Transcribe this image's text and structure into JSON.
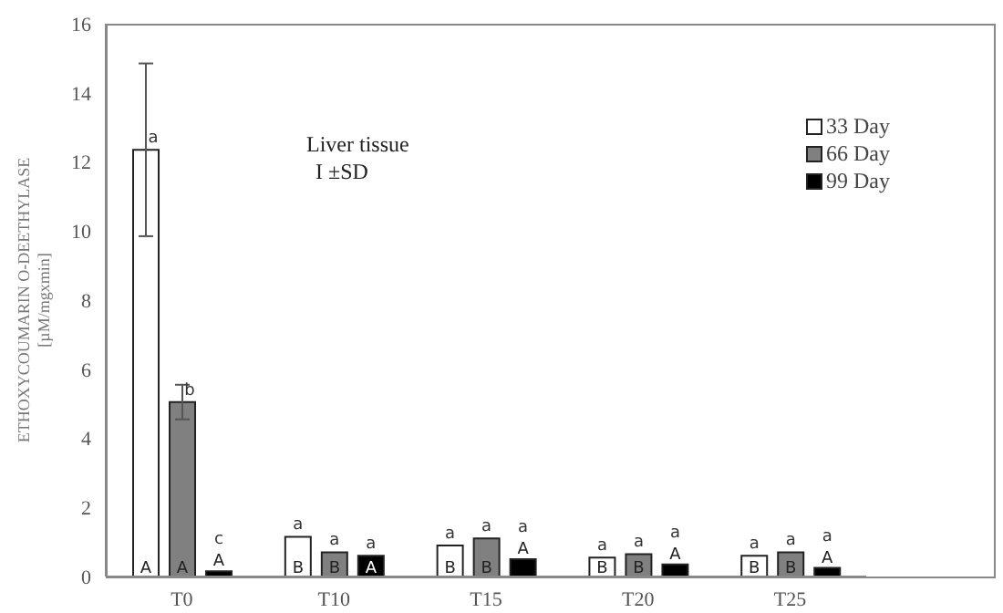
{
  "chart_data": {
    "type": "bar",
    "ylabel": "ETHOXYCOUMARIN  O-DEETHYLASE\n[µM/mgxmin]",
    "categories": [
      "T0",
      "T10",
      "T15",
      "T20",
      "T25"
    ],
    "series": [
      {
        "name": "33 Day",
        "color": "#ffffff",
        "values": [
          12.35,
          1.15,
          0.9,
          0.55,
          0.6
        ],
        "errors": [
          2.5,
          null,
          null,
          null,
          null
        ],
        "value_labels": [
          "a",
          "a",
          "a",
          "a",
          "a"
        ]
      },
      {
        "name": "66 Day",
        "color": "#808080",
        "values": [
          5.05,
          0.7,
          1.1,
          0.65,
          0.7
        ],
        "errors": [
          0.5,
          null,
          null,
          null,
          null
        ],
        "value_labels": [
          "b",
          "a",
          "a",
          "a",
          "a"
        ]
      },
      {
        "name": "99 Day",
        "color": "#000000",
        "values": [
          0.15,
          0.6,
          0.5,
          0.35,
          0.25
        ],
        "value_labels": [
          "c",
          "a",
          "a",
          "a",
          "a"
        ]
      }
    ],
    "ylim": [
      0,
      16
    ],
    "yticks": [
      0,
      2,
      4,
      6,
      8,
      10,
      12,
      14,
      16
    ],
    "legend": "top right",
    "annotations": [
      "Liver tissue",
      "I ±SD",
      "A",
      "A",
      "A",
      "B",
      "B",
      "A",
      "B",
      "B",
      "A",
      "B",
      "B",
      "A",
      "B",
      "B",
      "A"
    ]
  }
}
